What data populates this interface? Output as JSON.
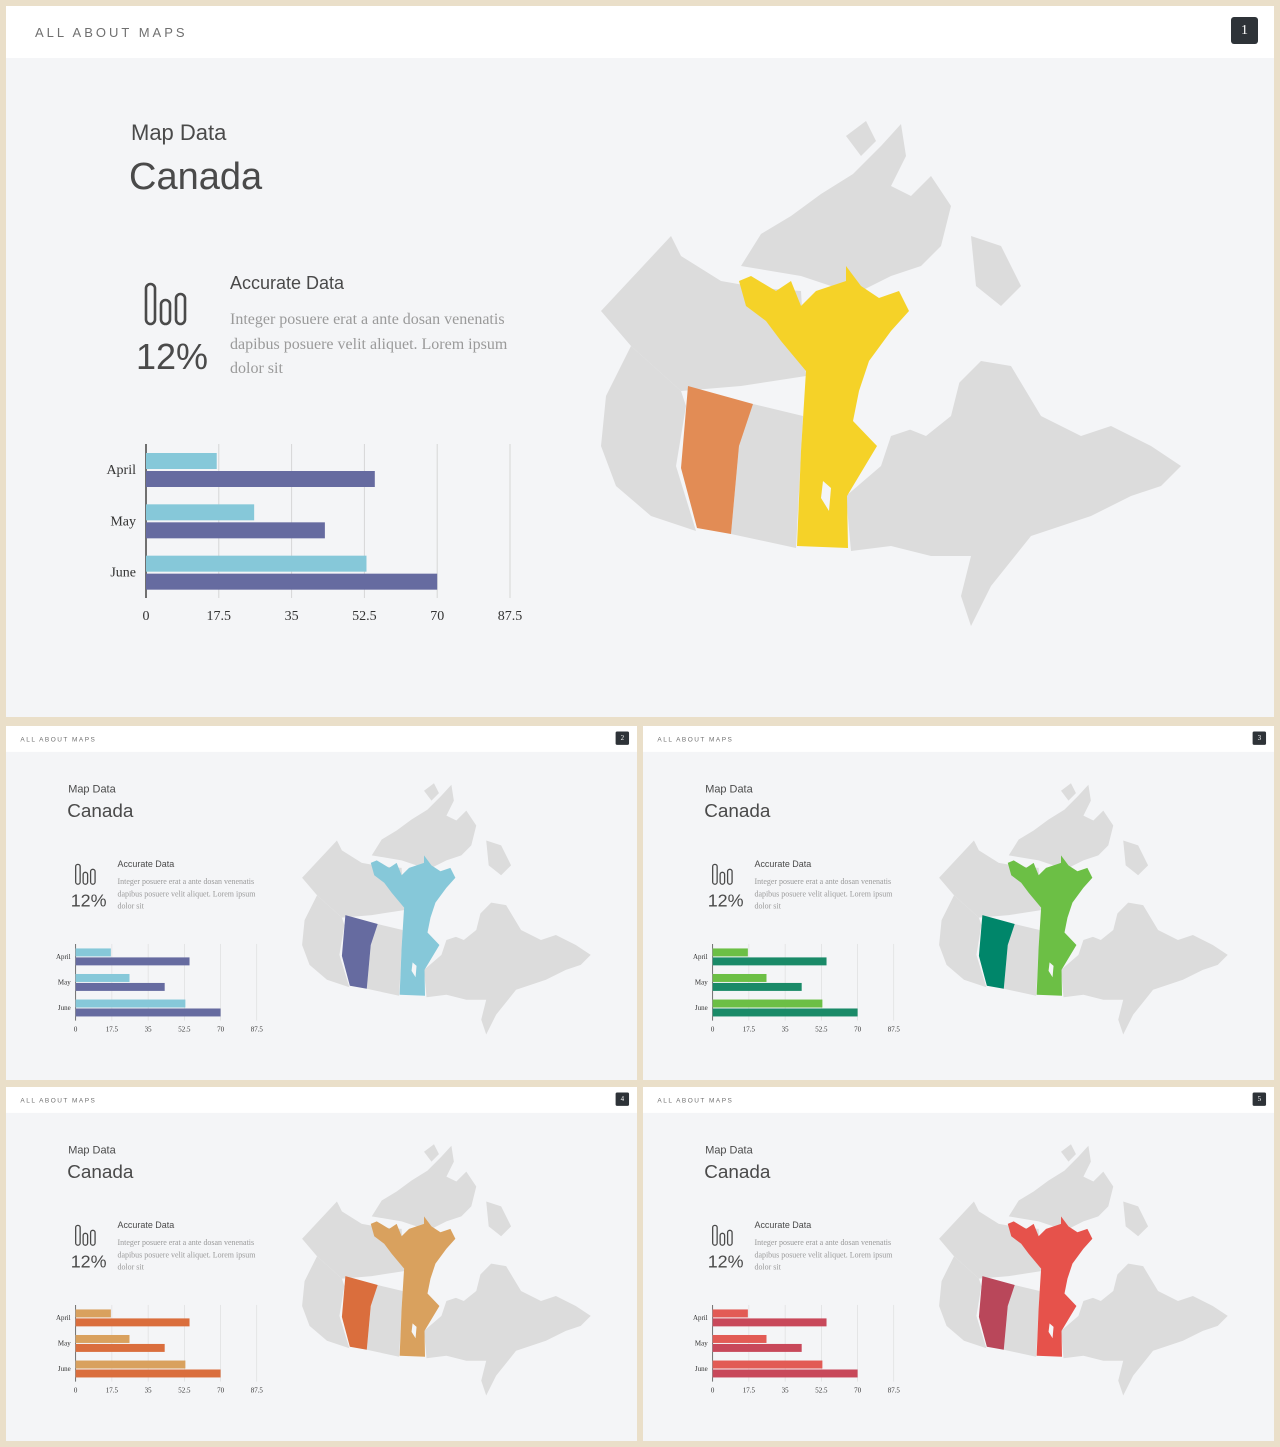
{
  "slides": [
    {
      "brand": "ALL ABOUT MAPS",
      "page": "1",
      "subtitle": "Map Data",
      "title": "Canada",
      "stat_value": "12%",
      "feature_title": "Accurate Data",
      "feature_body": "Integer posuere erat a ante dosan venenatis dapibus posuere velit aliquet. Lorem ipsum dolor sit",
      "colors": {
        "bar_a": "#86c8d9",
        "bar_b": "#666ba0",
        "region_west": "#e28c55",
        "region_center": "#f5d228"
      }
    },
    {
      "brand": "ALL ABOUT MAPS",
      "page": "2",
      "subtitle": "Map Data",
      "title": "Canada",
      "stat_value": "12%",
      "feature_title": "Accurate Data",
      "feature_body": "Integer posuere erat a ante dosan venenatis dapibus posuere velit aliquet. Lorem ipsum dolor sit",
      "colors": {
        "bar_a": "#86c8d9",
        "bar_b": "#666ba0",
        "region_west": "#666ba0",
        "region_center": "#86c8d9"
      }
    },
    {
      "brand": "ALL ABOUT MAPS",
      "page": "3",
      "subtitle": "Map Data",
      "title": "Canada",
      "stat_value": "12%",
      "feature_title": "Accurate Data",
      "feature_body": "Integer posuere erat a ante dosan venenatis dapibus posuere velit aliquet. Lorem ipsum dolor sit",
      "colors": {
        "bar_a": "#6cbf45",
        "bar_b": "#1a8a68",
        "region_west": "#00866a",
        "region_center": "#6cbf45"
      }
    },
    {
      "brand": "ALL ABOUT MAPS",
      "page": "4",
      "subtitle": "Map Data",
      "title": "Canada",
      "stat_value": "12%",
      "feature_title": "Accurate Data",
      "feature_body": "Integer posuere erat a ante dosan venenatis dapibus posuere velit aliquet. Lorem ipsum dolor sit",
      "colors": {
        "bar_a": "#d9a15e",
        "bar_b": "#da6e3d",
        "region_west": "#da6e3d",
        "region_center": "#d9a15e"
      }
    },
    {
      "brand": "ALL ABOUT MAPS",
      "page": "5",
      "subtitle": "Map Data",
      "title": "Canada",
      "stat_value": "12%",
      "feature_title": "Accurate Data",
      "feature_body": "Integer posuere erat a ante dosan venenatis dapibus posuere velit aliquet. Lorem ipsum dolor sit",
      "colors": {
        "bar_a": "#e25b55",
        "bar_b": "#c8485a",
        "region_west": "#b9475a",
        "region_center": "#e6524b"
      }
    }
  ],
  "chart_data": {
    "type": "bar",
    "orientation": "horizontal",
    "categories": [
      "April",
      "May",
      "June"
    ],
    "series": [
      {
        "values": [
          17,
          26,
          53
        ]
      },
      {
        "values": [
          55,
          43,
          70
        ]
      }
    ],
    "xticks": [
      "0",
      "17.5",
      "35",
      "52.5",
      "70",
      "87.5"
    ],
    "xlim": [
      0,
      87.5
    ],
    "grid": true
  }
}
